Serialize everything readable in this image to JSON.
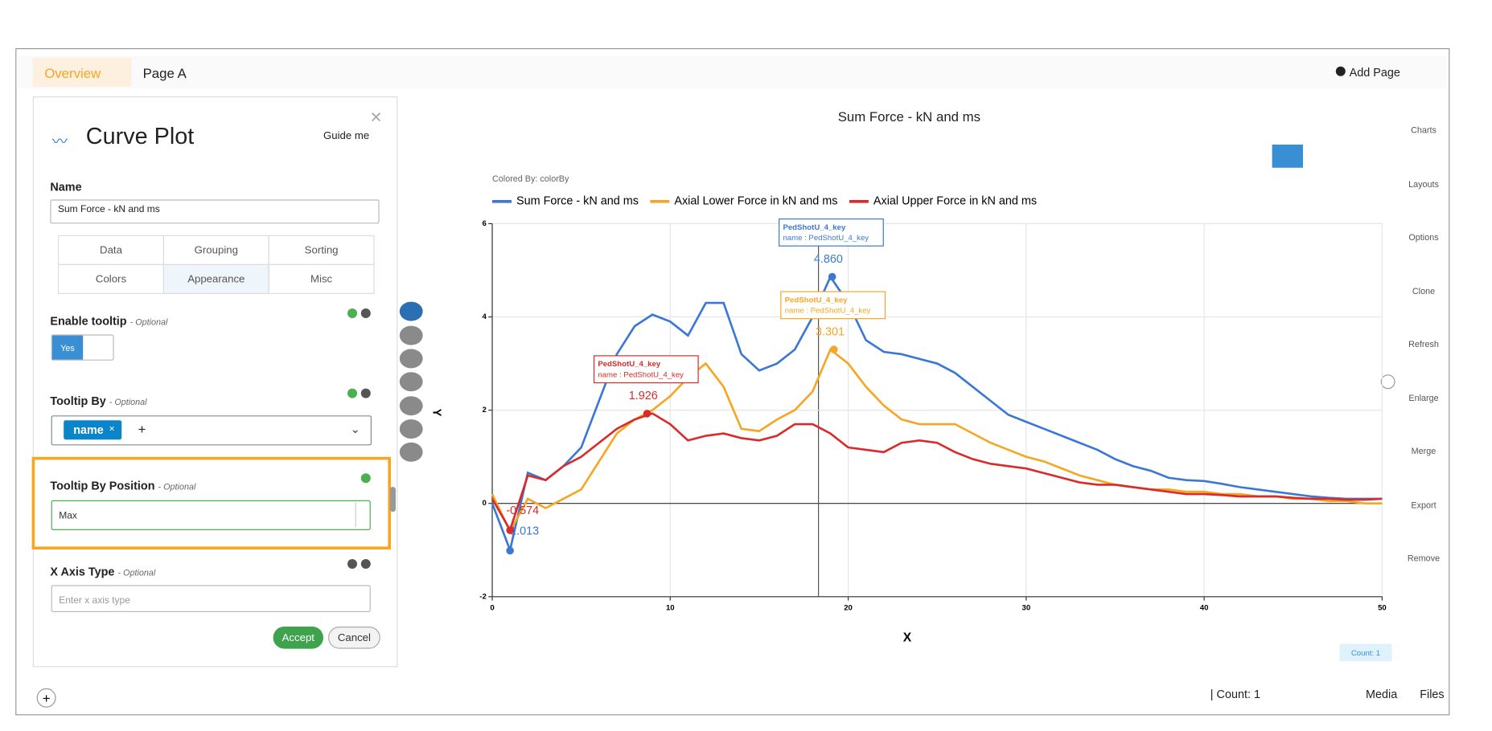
{
  "tabs": {
    "overview": "Overview",
    "page": "Page A",
    "add_page": "Add Page"
  },
  "panel": {
    "title": "Curve Plot",
    "guide": "Guide me",
    "name_label": "Name",
    "name_value": "Sum Force - kN and ms",
    "tabs": [
      "Data",
      "Grouping",
      "Sorting",
      "Colors",
      "Appearance",
      "Misc"
    ],
    "optional": "- Optional",
    "fields": [
      {
        "label": "Enable tooltip",
        "value": "Yes"
      },
      {
        "label": "Tooltip By",
        "value": "name"
      },
      {
        "label": "Tooltip By Position",
        "value": "Max"
      },
      {
        "label": "X Axis Type",
        "placeholder": "Enter x axis type"
      }
    ],
    "accept": "Accept",
    "cancel": "Cancel"
  },
  "sidebar": [
    "Charts",
    "Layouts",
    "Options",
    "Clone",
    "Refresh",
    "Enlarge",
    "Merge",
    "Export",
    "Remove"
  ],
  "footer": {
    "count": "| Count: 1",
    "media": "Media",
    "files": "Files",
    "badge": "Count: 1"
  },
  "chart_data": {
    "type": "line",
    "title": "Sum Force - kN and ms",
    "subtitle": "Colored By: colorBy",
    "x_label": "X",
    "y_label": "Y",
    "x": [
      0,
      1,
      2,
      3,
      4,
      5,
      6,
      7,
      8,
      9,
      10,
      11,
      12,
      13,
      14,
      15,
      16,
      17,
      18,
      19,
      20,
      21,
      22,
      23,
      24,
      25,
      26,
      27,
      28,
      29,
      30,
      31,
      32,
      33,
      34,
      35,
      36,
      37,
      38,
      39,
      40,
      41,
      42,
      43,
      44,
      45,
      46,
      47,
      48,
      49,
      50
    ],
    "series": [
      {
        "name": "Sum Force - kN and ms",
        "color": "#3a78d4",
        "values": [
          0,
          -1.0,
          0.66,
          0.5,
          0.8,
          1.2,
          2.2,
          3.2,
          3.8,
          4.05,
          3.9,
          3.6,
          4.3,
          4.3,
          3.2,
          2.85,
          3.0,
          3.3,
          4.0,
          4.86,
          4.3,
          3.5,
          3.25,
          3.2,
          3.1,
          3.0,
          2.8,
          2.5,
          2.2,
          1.9,
          1.75,
          1.6,
          1.45,
          1.3,
          1.15,
          0.95,
          0.8,
          0.7,
          0.55,
          0.5,
          0.48,
          0.42,
          0.35,
          0.3,
          0.25,
          0.2,
          0.15,
          0.12,
          0.1,
          0.1,
          0.1
        ]
      },
      {
        "name": "Axial Lower Force in kN and ms",
        "color": "#f5a623",
        "values": [
          0.2,
          -0.6,
          0.1,
          -0.1,
          0.1,
          0.3,
          0.9,
          1.5,
          1.8,
          2.0,
          2.3,
          2.7,
          3.0,
          2.5,
          1.6,
          1.55,
          1.8,
          2.0,
          2.4,
          3.3,
          3.0,
          2.5,
          2.1,
          1.8,
          1.7,
          1.7,
          1.7,
          1.5,
          1.3,
          1.15,
          1.0,
          0.9,
          0.75,
          0.6,
          0.5,
          0.4,
          0.35,
          0.3,
          0.3,
          0.25,
          0.25,
          0.2,
          0.2,
          0.15,
          0.15,
          0.1,
          0.1,
          0.05,
          0.05,
          0,
          0
        ]
      },
      {
        "name": "Axial Upper Force in kN and ms",
        "color": "#d92b2b",
        "values": [
          0.1,
          -0.57,
          0.6,
          0.5,
          0.8,
          1.0,
          1.3,
          1.6,
          1.8,
          1.93,
          1.7,
          1.35,
          1.45,
          1.5,
          1.4,
          1.35,
          1.45,
          1.7,
          1.7,
          1.5,
          1.2,
          1.15,
          1.1,
          1.3,
          1.35,
          1.3,
          1.1,
          0.95,
          0.85,
          0.8,
          0.75,
          0.65,
          0.55,
          0.45,
          0.4,
          0.4,
          0.35,
          0.3,
          0.25,
          0.2,
          0.2,
          0.18,
          0.15,
          0.15,
          0.15,
          0.12,
          0.1,
          0.1,
          0.08,
          0.08,
          0.1
        ]
      }
    ],
    "xlim": [
      0,
      50
    ],
    "ylim": [
      -2,
      6
    ],
    "xticks": [
      0,
      10,
      20,
      30,
      40,
      50
    ],
    "yticks": [
      -2,
      0,
      2,
      4,
      6
    ],
    "grid": true,
    "annotations": [
      {
        "series": 0,
        "x": 19.1,
        "y": 4.86,
        "label": "4.860",
        "title": "PedShotU_4_key",
        "text": "name : PedShotU_4_key"
      },
      {
        "series": 1,
        "x": 19.2,
        "y": 3.301,
        "label": "3.301",
        "title": "PedShotU_4_key",
        "text": "name : PedShotU_4_key"
      },
      {
        "series": 2,
        "x": 8.7,
        "y": 1.926,
        "label": "1.926",
        "title": "PedShotU_4_key",
        "text": "name : PedShotU_4_key"
      },
      {
        "series": 0,
        "x": 1,
        "y": -1.013,
        "label": "-1.013"
      },
      {
        "series": 2,
        "x": 1,
        "y": -0.574,
        "label": "-0.574"
      }
    ]
  }
}
